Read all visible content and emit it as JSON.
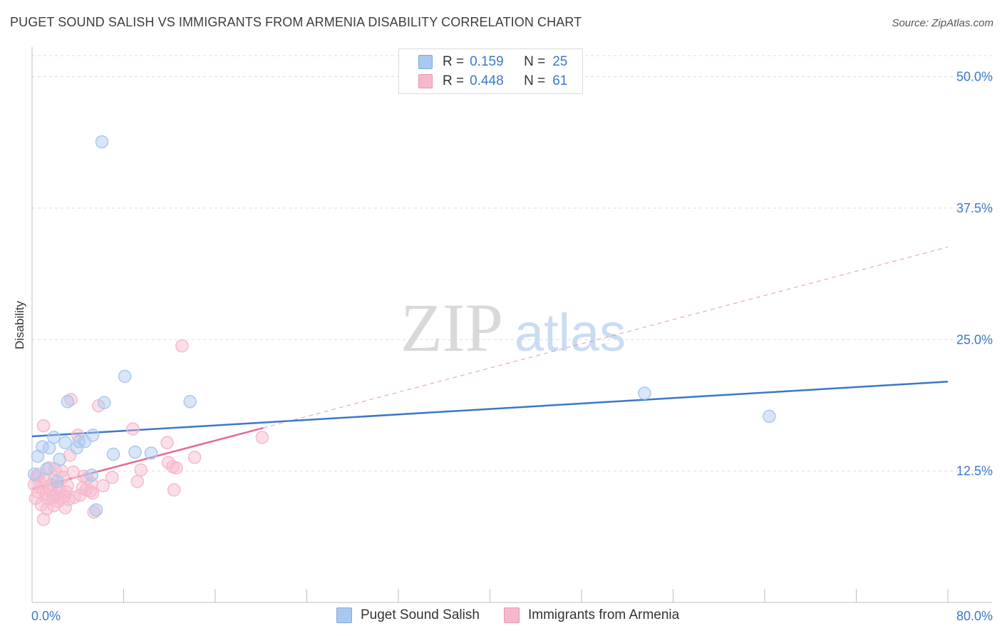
{
  "title": "PUGET SOUND SALISH VS IMMIGRANTS FROM ARMENIA DISABILITY CORRELATION CHART",
  "source": "Source: ZipAtlas.com",
  "watermark": {
    "zip": "ZIP",
    "atlas": "atlas"
  },
  "legend": {
    "rows": [
      {
        "r_label": "R =",
        "r_value": "0.159",
        "n_label": "N =",
        "n_value": "25",
        "color": "#a9c8f0"
      },
      {
        "r_label": "R =",
        "r_value": "0.448",
        "n_label": "N =",
        "n_value": "61",
        "color": "#f6b9cc"
      }
    ]
  },
  "bottom_legend": {
    "series1": "Puget Sound Salish",
    "series2": "Immigrants from Armenia"
  },
  "chart_data": {
    "type": "scatter",
    "title": "PUGET SOUND SALISH VS IMMIGRANTS FROM ARMENIA DISABILITY CORRELATION CHART",
    "xlabel": "",
    "ylabel": "Disability",
    "xlim": [
      0,
      80
    ],
    "ylim": [
      0,
      52
    ],
    "y_ticks": [
      12.5,
      25.0,
      37.5,
      50.0
    ],
    "y_tick_labels": [
      "12.5%",
      "25.0%",
      "37.5%",
      "50.0%"
    ],
    "x_tick_labels": [
      "0.0%",
      "80.0%"
    ],
    "grid": true,
    "series": [
      {
        "name": "Puget Sound Salish",
        "color": "#3a78c9",
        "fill": "#a9c8f0",
        "trend": {
          "x0": 0,
          "y0": 15.8,
          "x1": 80,
          "y1": 21.0,
          "style": "solid"
        },
        "points": [
          {
            "x": 6.1,
            "y": 43.8
          },
          {
            "x": 8.1,
            "y": 21.5
          },
          {
            "x": 3.1,
            "y": 19.1
          },
          {
            "x": 6.3,
            "y": 19.0
          },
          {
            "x": 13.8,
            "y": 19.1
          },
          {
            "x": 53.5,
            "y": 19.9
          },
          {
            "x": 64.4,
            "y": 17.7
          },
          {
            "x": 1.9,
            "y": 15.7
          },
          {
            "x": 2.9,
            "y": 15.2
          },
          {
            "x": 4.1,
            "y": 15.3
          },
          {
            "x": 4.6,
            "y": 15.3
          },
          {
            "x": 5.3,
            "y": 15.9
          },
          {
            "x": 0.9,
            "y": 14.8
          },
          {
            "x": 1.5,
            "y": 14.7
          },
          {
            "x": 3.9,
            "y": 14.7
          },
          {
            "x": 0.5,
            "y": 13.9
          },
          {
            "x": 2.4,
            "y": 13.6
          },
          {
            "x": 7.1,
            "y": 14.1
          },
          {
            "x": 9.0,
            "y": 14.3
          },
          {
            "x": 10.4,
            "y": 14.2
          },
          {
            "x": 0.2,
            "y": 12.2
          },
          {
            "x": 5.2,
            "y": 12.1
          },
          {
            "x": 2.2,
            "y": 11.5
          },
          {
            "x": 1.3,
            "y": 12.7
          },
          {
            "x": 5.6,
            "y": 8.8
          }
        ]
      },
      {
        "name": "Immigrants from Armenia",
        "color": "#e36b94",
        "fill": "#f6b9cc",
        "trend": {
          "x0": 0,
          "y0": 10.8,
          "x1": 20.2,
          "y1": 16.6,
          "style": "solid",
          "extension": {
            "x1": 80,
            "y1": 33.8,
            "style": "dashed"
          }
        },
        "points": [
          {
            "x": 13.1,
            "y": 24.4
          },
          {
            "x": 3.4,
            "y": 19.3
          },
          {
            "x": 5.8,
            "y": 18.7
          },
          {
            "x": 1.0,
            "y": 16.8
          },
          {
            "x": 8.8,
            "y": 16.5
          },
          {
            "x": 4.0,
            "y": 15.9
          },
          {
            "x": 20.1,
            "y": 15.7
          },
          {
            "x": 11.8,
            "y": 15.2
          },
          {
            "x": 3.3,
            "y": 14.0
          },
          {
            "x": 14.2,
            "y": 13.8
          },
          {
            "x": 11.9,
            "y": 13.3
          },
          {
            "x": 12.3,
            "y": 12.9
          },
          {
            "x": 12.6,
            "y": 12.8
          },
          {
            "x": 9.5,
            "y": 12.6
          },
          {
            "x": 1.5,
            "y": 12.8
          },
          {
            "x": 2.0,
            "y": 12.7
          },
          {
            "x": 2.6,
            "y": 12.5
          },
          {
            "x": 0.4,
            "y": 12.0
          },
          {
            "x": 4.5,
            "y": 12.0
          },
          {
            "x": 7.0,
            "y": 11.9
          },
          {
            "x": 9.2,
            "y": 11.5
          },
          {
            "x": 4.8,
            "y": 11.8
          },
          {
            "x": 1.1,
            "y": 11.7
          },
          {
            "x": 1.9,
            "y": 11.6
          },
          {
            "x": 0.7,
            "y": 11.4
          },
          {
            "x": 5.2,
            "y": 11.3
          },
          {
            "x": 2.2,
            "y": 11.0
          },
          {
            "x": 3.1,
            "y": 11.1
          },
          {
            "x": 0.2,
            "y": 11.2
          },
          {
            "x": 0.9,
            "y": 10.9
          },
          {
            "x": 1.6,
            "y": 10.7
          },
          {
            "x": 2.4,
            "y": 10.8
          },
          {
            "x": 4.7,
            "y": 10.7
          },
          {
            "x": 5.1,
            "y": 10.6
          },
          {
            "x": 0.5,
            "y": 10.5
          },
          {
            "x": 1.2,
            "y": 10.3
          },
          {
            "x": 2.0,
            "y": 10.2
          },
          {
            "x": 2.8,
            "y": 10.1
          },
          {
            "x": 4.2,
            "y": 10.2
          },
          {
            "x": 5.3,
            "y": 10.4
          },
          {
            "x": 12.4,
            "y": 10.7
          },
          {
            "x": 0.3,
            "y": 9.9
          },
          {
            "x": 1.4,
            "y": 9.8
          },
          {
            "x": 1.8,
            "y": 10.0
          },
          {
            "x": 2.5,
            "y": 9.9
          },
          {
            "x": 3.2,
            "y": 9.8
          },
          {
            "x": 0.8,
            "y": 9.3
          },
          {
            "x": 1.9,
            "y": 9.2
          },
          {
            "x": 2.9,
            "y": 9.0
          },
          {
            "x": 5.4,
            "y": 8.6
          },
          {
            "x": 1.0,
            "y": 7.9
          },
          {
            "x": 3.7,
            "y": 10.0
          },
          {
            "x": 2.3,
            "y": 9.6
          },
          {
            "x": 1.3,
            "y": 8.9
          },
          {
            "x": 6.2,
            "y": 11.1
          },
          {
            "x": 3.6,
            "y": 12.4
          },
          {
            "x": 0.6,
            "y": 12.2
          },
          {
            "x": 2.7,
            "y": 11.9
          },
          {
            "x": 1.7,
            "y": 11.2
          },
          {
            "x": 4.4,
            "y": 10.9
          },
          {
            "x": 3.0,
            "y": 10.5
          }
        ]
      }
    ]
  }
}
